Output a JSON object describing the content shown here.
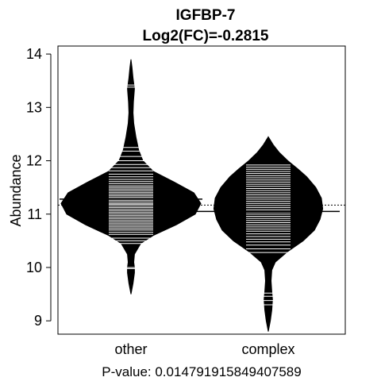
{
  "chart_data": {
    "type": "beanplot",
    "title": "IGFBP-7",
    "subtitle": "Log2(FC)=-0.2815",
    "ylabel": "Abundance",
    "xlabel": "",
    "footer": "P-value: 0.014791915849407589",
    "categories": [
      "other",
      "complex"
    ],
    "ylim": [
      8.75,
      14.15
    ],
    "yticks": [
      9,
      10,
      11,
      12,
      13,
      14
    ],
    "overall_mean": 11.17,
    "fill_color": "#000000",
    "line_color": "#ffffff",
    "beans": [
      {
        "name": "other",
        "mean": 11.28,
        "range": [
          9.5,
          13.9
        ],
        "density": [
          [
            9.5,
            0.0
          ],
          [
            9.7,
            0.03
          ],
          [
            9.9,
            0.05
          ],
          [
            10.0,
            0.05
          ],
          [
            10.1,
            0.04
          ],
          [
            10.25,
            0.05
          ],
          [
            10.45,
            0.14
          ],
          [
            10.6,
            0.32
          ],
          [
            10.8,
            0.65
          ],
          [
            11.0,
            0.92
          ],
          [
            11.2,
            1.0
          ],
          [
            11.4,
            0.9
          ],
          [
            11.6,
            0.62
          ],
          [
            11.8,
            0.32
          ],
          [
            12.0,
            0.17
          ],
          [
            12.2,
            0.11
          ],
          [
            12.45,
            0.07
          ],
          [
            12.7,
            0.04
          ],
          [
            12.9,
            0.03
          ],
          [
            13.1,
            0.035
          ],
          [
            13.35,
            0.05
          ],
          [
            13.55,
            0.03
          ],
          [
            13.75,
            0.015
          ],
          [
            13.9,
            0.0
          ]
        ],
        "values": [
          9.98,
          10.0,
          10.45,
          10.5,
          10.55,
          10.62,
          10.66,
          10.7,
          10.73,
          10.76,
          10.79,
          10.82,
          10.85,
          10.88,
          10.91,
          10.94,
          10.97,
          11.0,
          11.03,
          11.06,
          11.09,
          11.12,
          11.15,
          11.18,
          11.2,
          11.23,
          11.26,
          11.29,
          11.32,
          11.35,
          11.38,
          11.41,
          11.44,
          11.47,
          11.5,
          11.53,
          11.57,
          11.61,
          11.65,
          11.7,
          11.75,
          11.81,
          11.87,
          11.93,
          12.0,
          12.08,
          12.18,
          12.25,
          13.38,
          13.42
        ]
      },
      {
        "name": "complex",
        "mean": 11.05,
        "range": [
          8.8,
          12.45
        ],
        "density": [
          [
            8.8,
            0.0
          ],
          [
            9.0,
            0.03
          ],
          [
            9.2,
            0.05
          ],
          [
            9.4,
            0.06
          ],
          [
            9.55,
            0.05
          ],
          [
            9.75,
            0.04
          ],
          [
            9.95,
            0.05
          ],
          [
            10.1,
            0.1
          ],
          [
            10.3,
            0.28
          ],
          [
            10.5,
            0.5
          ],
          [
            10.7,
            0.66
          ],
          [
            10.9,
            0.74
          ],
          [
            11.1,
            0.78
          ],
          [
            11.3,
            0.76
          ],
          [
            11.5,
            0.68
          ],
          [
            11.7,
            0.55
          ],
          [
            11.85,
            0.42
          ],
          [
            12.0,
            0.28
          ],
          [
            12.15,
            0.16
          ],
          [
            12.3,
            0.07
          ],
          [
            12.45,
            0.0
          ]
        ],
        "values": [
          9.3,
          9.38,
          9.46,
          9.52,
          10.28,
          10.35,
          10.42,
          10.48,
          10.53,
          10.58,
          10.63,
          10.68,
          10.72,
          10.76,
          10.8,
          10.84,
          10.88,
          10.92,
          10.96,
          11.0,
          11.04,
          11.08,
          11.12,
          11.16,
          11.2,
          11.24,
          11.28,
          11.32,
          11.36,
          11.4,
          11.44,
          11.48,
          11.52,
          11.56,
          11.6,
          11.64,
          11.68,
          11.72,
          11.76,
          11.8,
          11.84,
          11.88,
          11.92
        ]
      }
    ]
  }
}
